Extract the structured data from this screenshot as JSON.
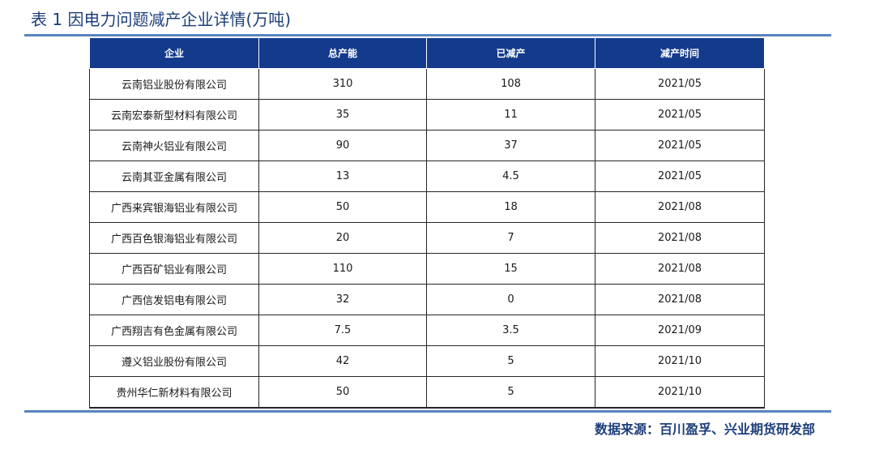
{
  "title": "表 1  因电力问题减产企业详情(万吨)",
  "table": {
    "headers": [
      "企业",
      "总产能",
      "已减产",
      "减产时间"
    ],
    "rows": [
      [
        "云南铝业股份有限公司",
        "310",
        "108",
        "2021/05"
      ],
      [
        "云南宏泰新型材料有限公司",
        "35",
        "11",
        "2021/05"
      ],
      [
        "云南神火铝业有限公司",
        "90",
        "37",
        "2021/05"
      ],
      [
        "云南其亚金属有限公司",
        "13",
        "4.5",
        "2021/05"
      ],
      [
        "广西来宾银海铝业有限公司",
        "50",
        "18",
        "2021/08"
      ],
      [
        "广西百色银海铝业有限公司",
        "20",
        "7",
        "2021/08"
      ],
      [
        "广西百矿铝业有限公司",
        "110",
        "15",
        "2021/08"
      ],
      [
        "广西信发铝电有限公司",
        "32",
        "0",
        "2021/08"
      ],
      [
        "广西翔吉有色金属有限公司",
        "7.5",
        "3.5",
        "2021/09"
      ],
      [
        "遵义铝业股份有限公司",
        "42",
        "5",
        "2021/10"
      ],
      [
        "贵州华仁新材料有限公司",
        "50",
        "5",
        "2021/10"
      ]
    ]
  },
  "source": "数据来源：百川盈孚、兴业期货研发部",
  "colors": {
    "header_bg": "#143a8c",
    "rule": "#5a84bf",
    "title_text": "#1d3f7a"
  }
}
